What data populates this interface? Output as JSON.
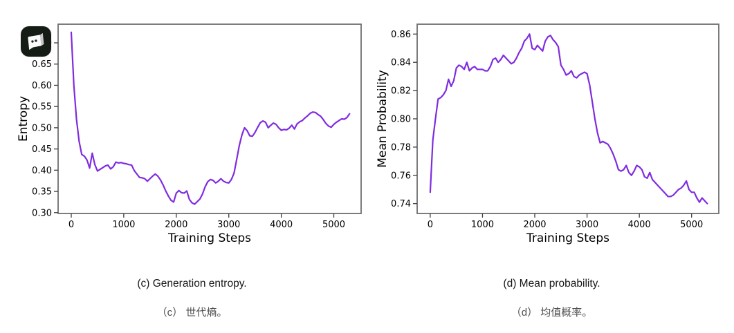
{
  "page": {
    "background": "#ffffff"
  },
  "app_icon": {
    "glyph": "speech-bubble-with-dots",
    "bg": "#151b15",
    "bubble": "#fafafa",
    "fold": "#c9c9c9",
    "dots": "#20251f"
  },
  "colors": {
    "line": "#7f2be0",
    "spine": "#6e6e6e",
    "tick": "#3c3c3c",
    "axis_text": "#000000",
    "caption_en": "#161616",
    "caption_zh": "#4f4f4f"
  },
  "figures": [
    {
      "caption_en": "(c) Generation entropy.",
      "caption_zh": "（c） 世代熵。"
    },
    {
      "caption_en": "(d) Mean probability.",
      "caption_zh": "（d） 均值概率。"
    }
  ],
  "chart_data": [
    {
      "type": "line",
      "title": "",
      "xlabel": "Training Steps",
      "ylabel": "Entropy",
      "xlim": [
        -250,
        5520
      ],
      "ylim": [
        0.298,
        0.744
      ],
      "xticks": [
        0,
        1000,
        2000,
        3000,
        4000,
        5000
      ],
      "yticks": [
        0.3,
        0.35,
        0.4,
        0.45,
        0.5,
        0.55,
        0.6,
        0.65,
        0.7
      ],
      "ytick_decimals": 2,
      "grid": false,
      "legend": "none",
      "series": [
        {
          "name": "generation-entropy",
          "x_start": 0,
          "x_step": 50,
          "values": [
            0.725,
            0.6,
            0.52,
            0.468,
            0.437,
            0.433,
            0.424,
            0.405,
            0.44,
            0.413,
            0.398,
            0.402,
            0.406,
            0.41,
            0.412,
            0.403,
            0.408,
            0.419,
            0.417,
            0.418,
            0.416,
            0.415,
            0.413,
            0.412,
            0.399,
            0.391,
            0.383,
            0.382,
            0.38,
            0.374,
            0.38,
            0.386,
            0.391,
            0.386,
            0.377,
            0.365,
            0.351,
            0.339,
            0.329,
            0.325,
            0.346,
            0.352,
            0.347,
            0.346,
            0.351,
            0.331,
            0.323,
            0.32,
            0.326,
            0.332,
            0.344,
            0.361,
            0.373,
            0.378,
            0.376,
            0.37,
            0.374,
            0.38,
            0.374,
            0.371,
            0.37,
            0.378,
            0.393,
            0.425,
            0.458,
            0.483,
            0.5,
            0.493,
            0.481,
            0.48,
            0.489,
            0.501,
            0.512,
            0.516,
            0.513,
            0.5,
            0.506,
            0.511,
            0.508,
            0.5,
            0.494,
            0.496,
            0.495,
            0.499,
            0.506,
            0.497,
            0.509,
            0.514,
            0.517,
            0.523,
            0.528,
            0.534,
            0.537,
            0.536,
            0.531,
            0.527,
            0.519,
            0.51,
            0.504,
            0.501,
            0.508,
            0.513,
            0.517,
            0.521,
            0.52,
            0.524,
            0.533
          ]
        }
      ]
    },
    {
      "type": "line",
      "title": "",
      "xlabel": "Training Steps",
      "ylabel": "Mean Probability",
      "xlim": [
        -250,
        5520
      ],
      "ylim": [
        0.733,
        0.867
      ],
      "xticks": [
        0,
        1000,
        2000,
        3000,
        4000,
        5000
      ],
      "yticks": [
        0.74,
        0.76,
        0.78,
        0.8,
        0.82,
        0.84,
        0.86
      ],
      "ytick_decimals": 2,
      "grid": false,
      "legend": "none",
      "series": [
        {
          "name": "mean-probability",
          "x_start": 0,
          "x_step": 50,
          "values": [
            0.748,
            0.785,
            0.8,
            0.814,
            0.815,
            0.817,
            0.82,
            0.828,
            0.823,
            0.827,
            0.836,
            0.838,
            0.837,
            0.835,
            0.84,
            0.834,
            0.836,
            0.837,
            0.835,
            0.835,
            0.835,
            0.834,
            0.834,
            0.837,
            0.842,
            0.843,
            0.84,
            0.842,
            0.845,
            0.843,
            0.841,
            0.839,
            0.84,
            0.843,
            0.847,
            0.85,
            0.855,
            0.857,
            0.86,
            0.85,
            0.849,
            0.852,
            0.85,
            0.848,
            0.855,
            0.858,
            0.859,
            0.856,
            0.854,
            0.851,
            0.838,
            0.835,
            0.831,
            0.832,
            0.834,
            0.83,
            0.829,
            0.831,
            0.832,
            0.833,
            0.832,
            0.824,
            0.812,
            0.8,
            0.79,
            0.783,
            0.784,
            0.783,
            0.782,
            0.779,
            0.775,
            0.77,
            0.764,
            0.763,
            0.764,
            0.767,
            0.762,
            0.76,
            0.763,
            0.767,
            0.766,
            0.764,
            0.759,
            0.758,
            0.762,
            0.757,
            0.755,
            0.753,
            0.751,
            0.749,
            0.747,
            0.745,
            0.745,
            0.746,
            0.748,
            0.75,
            0.751,
            0.753,
            0.756,
            0.75,
            0.748,
            0.748,
            0.744,
            0.741,
            0.744,
            0.742,
            0.74
          ]
        }
      ]
    }
  ]
}
